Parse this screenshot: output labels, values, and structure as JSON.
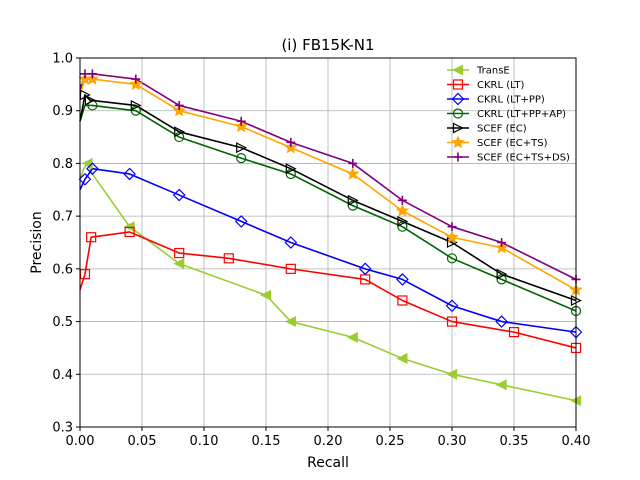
{
  "chart_data": {
    "type": "line",
    "title": "(i) FB15K-N1",
    "xlabel": "Recall",
    "ylabel": "Precision",
    "xlim": [
      0,
      0.4
    ],
    "ylim": [
      0.3,
      1.0
    ],
    "xticks": [
      0.0,
      0.05,
      0.1,
      0.15,
      0.2,
      0.25,
      0.3,
      0.35,
      0.4
    ],
    "xtick_labels": [
      "0.00",
      "0.05",
      "0.10",
      "0.15",
      "0.20",
      "0.25",
      "0.30",
      "0.35",
      "0.40"
    ],
    "yticks": [
      0.3,
      0.4,
      0.5,
      0.6,
      0.7,
      0.8,
      0.9,
      1.0
    ],
    "ytick_labels": [
      "0.3",
      "0.4",
      "0.5",
      "0.6",
      "0.7",
      "0.8",
      "0.9",
      "1.0"
    ],
    "grid": true,
    "legend_position": "top-right",
    "series": [
      {
        "name": "TransE",
        "color": "#9acd32",
        "marker": "triangle-left",
        "x": [
          0.0,
          0.003,
          0.006,
          0.01,
          0.04,
          0.08,
          0.15,
          0.17,
          0.22,
          0.26,
          0.3,
          0.34,
          0.4
        ],
        "y": [
          0.77,
          0.79,
          0.8,
          0.78,
          0.68,
          0.61,
          0.55,
          0.5,
          0.47,
          0.43,
          0.4,
          0.38,
          0.35
        ],
        "marker_idx": [
          2,
          4,
          5,
          6,
          7,
          8,
          9,
          10,
          11,
          12
        ]
      },
      {
        "name": "CKRL (LT)",
        "color": "#ff0000",
        "marker": "square",
        "x": [
          0.0,
          0.004,
          0.009,
          0.04,
          0.08,
          0.12,
          0.17,
          0.23,
          0.26,
          0.3,
          0.35,
          0.4
        ],
        "y": [
          0.56,
          0.59,
          0.66,
          0.67,
          0.63,
          0.62,
          0.6,
          0.58,
          0.54,
          0.5,
          0.48,
          0.45
        ],
        "marker_idx": [
          1,
          2,
          3,
          4,
          5,
          6,
          7,
          8,
          9,
          10,
          11
        ]
      },
      {
        "name": "CKRL (LT+PP)",
        "color": "#0000ff",
        "marker": "diamond",
        "x": [
          0.0,
          0.004,
          0.01,
          0.04,
          0.08,
          0.13,
          0.17,
          0.23,
          0.26,
          0.3,
          0.34,
          0.4
        ],
        "y": [
          0.75,
          0.77,
          0.79,
          0.78,
          0.74,
          0.69,
          0.65,
          0.6,
          0.58,
          0.53,
          0.5,
          0.48
        ],
        "marker_idx": [
          1,
          2,
          3,
          4,
          5,
          6,
          7,
          8,
          9,
          10,
          11
        ]
      },
      {
        "name": "CKRL (LT+PP+AP)",
        "color": "#006400",
        "marker": "circle",
        "x": [
          0.0,
          0.004,
          0.01,
          0.045,
          0.08,
          0.13,
          0.17,
          0.22,
          0.26,
          0.3,
          0.34,
          0.4
        ],
        "y": [
          0.88,
          0.91,
          0.91,
          0.9,
          0.85,
          0.81,
          0.78,
          0.72,
          0.68,
          0.62,
          0.58,
          0.52
        ],
        "marker_idx": [
          2,
          3,
          4,
          5,
          6,
          7,
          8,
          9,
          10,
          11
        ]
      },
      {
        "name": "SCEF (EC)",
        "color": "#000000",
        "marker": "triangle-right",
        "x": [
          0.0,
          0.004,
          0.008,
          0.045,
          0.08,
          0.13,
          0.17,
          0.22,
          0.26,
          0.3,
          0.34,
          0.4
        ],
        "y": [
          0.88,
          0.93,
          0.92,
          0.91,
          0.86,
          0.83,
          0.79,
          0.73,
          0.69,
          0.65,
          0.59,
          0.54
        ],
        "marker_idx": [
          1,
          2,
          3,
          4,
          5,
          6,
          7,
          8,
          9,
          10,
          11
        ]
      },
      {
        "name": "SCEF (EC+TS)",
        "color": "#ffa500",
        "marker": "star",
        "x": [
          0.0,
          0.004,
          0.01,
          0.045,
          0.08,
          0.13,
          0.17,
          0.22,
          0.26,
          0.3,
          0.34,
          0.4
        ],
        "y": [
          0.93,
          0.96,
          0.96,
          0.95,
          0.9,
          0.87,
          0.83,
          0.78,
          0.71,
          0.66,
          0.64,
          0.56
        ],
        "marker_idx": [
          1,
          2,
          3,
          4,
          5,
          6,
          7,
          8,
          9,
          10,
          11
        ]
      },
      {
        "name": "SCEF (EC+TS+DS)",
        "color": "#800080",
        "marker": "plus",
        "x": [
          0.0,
          0.004,
          0.01,
          0.045,
          0.08,
          0.13,
          0.17,
          0.22,
          0.26,
          0.3,
          0.34,
          0.4
        ],
        "y": [
          0.94,
          0.97,
          0.97,
          0.96,
          0.91,
          0.88,
          0.84,
          0.8,
          0.73,
          0.68,
          0.65,
          0.58
        ],
        "marker_idx": [
          1,
          2,
          3,
          4,
          5,
          6,
          7,
          8,
          9,
          10,
          11
        ]
      }
    ]
  }
}
